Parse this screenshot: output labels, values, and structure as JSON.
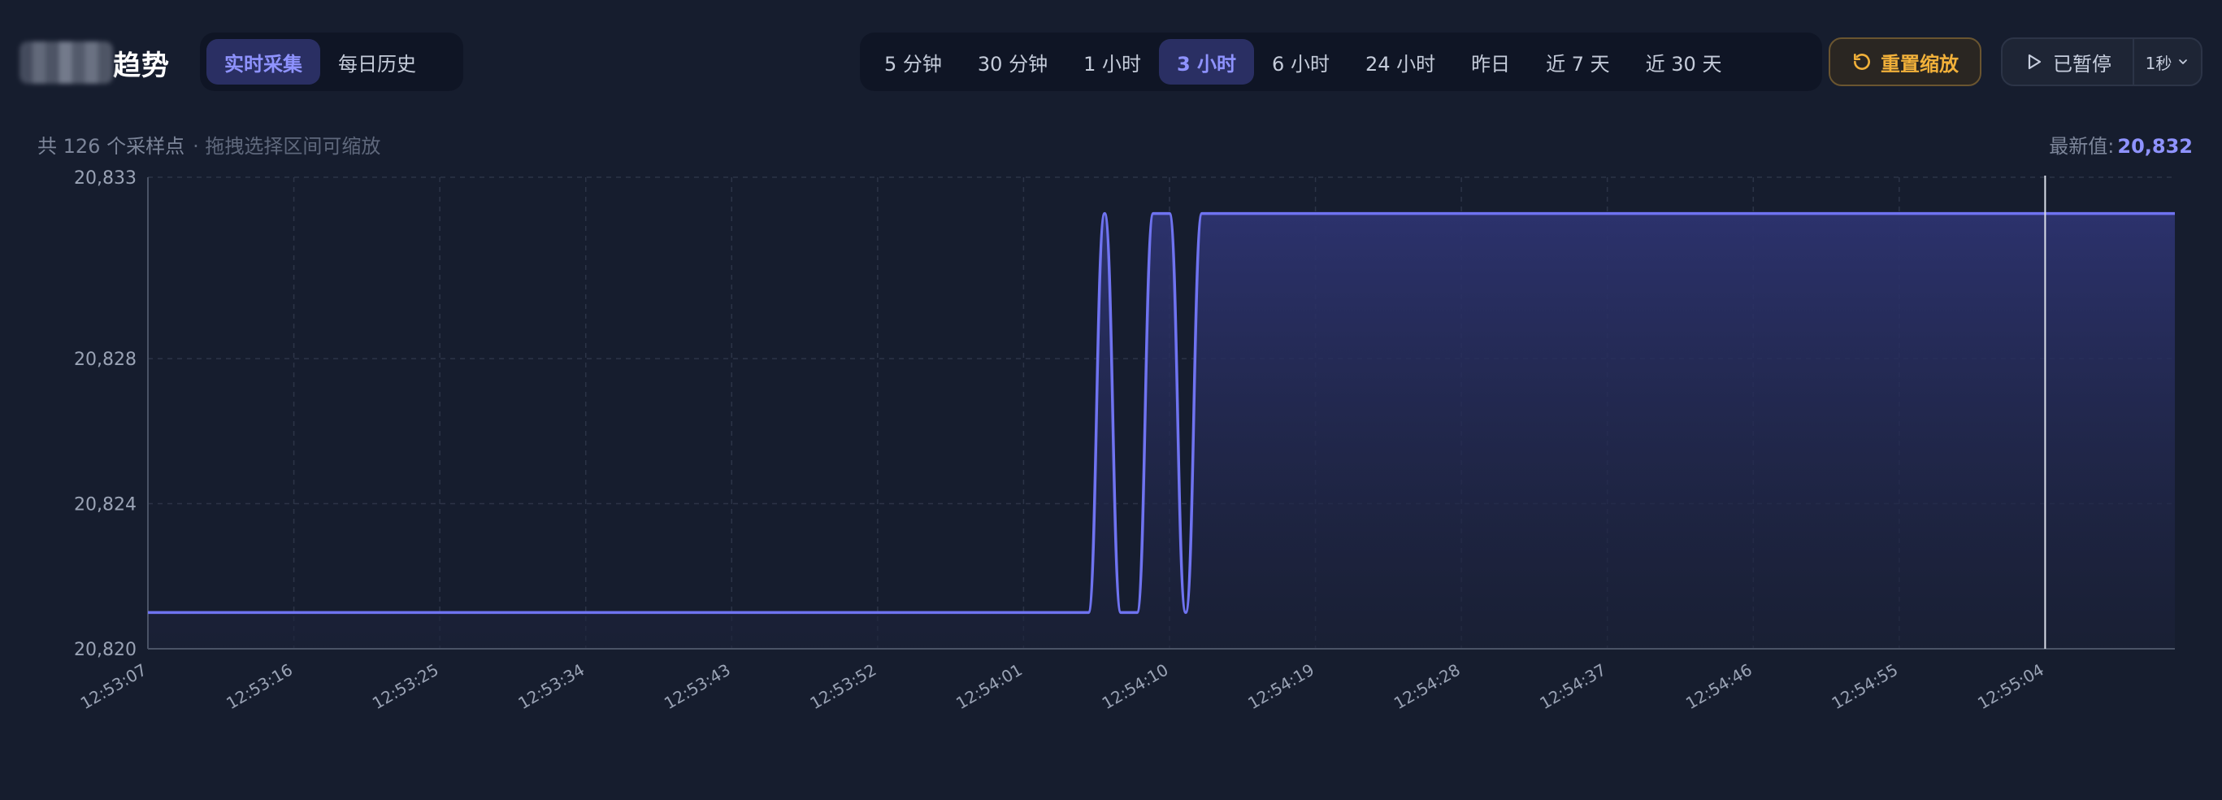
{
  "header": {
    "title_suffix": "趋势",
    "modes": [
      {
        "label": "实时采集",
        "active": true
      },
      {
        "label": "每日历史",
        "active": false
      }
    ],
    "ranges": [
      {
        "label": "5 分钟",
        "active": false
      },
      {
        "label": "30 分钟",
        "active": false
      },
      {
        "label": "1 小时",
        "active": false
      },
      {
        "label": "3 小时",
        "active": true
      },
      {
        "label": "6 小时",
        "active": false
      },
      {
        "label": "24 小时",
        "active": false
      },
      {
        "label": "昨日",
        "active": false
      },
      {
        "label": "近 7 天",
        "active": false
      },
      {
        "label": "近 30 天",
        "active": false
      }
    ],
    "reset_label": "重置缩放",
    "pause_label": "已暂停",
    "interval_label": "1秒"
  },
  "info": {
    "sample_count_text": "共 126 个采样点",
    "drag_hint": "· 拖拽选择区间可缩放",
    "latest_label": "最新值:",
    "latest_value": "20,832"
  },
  "colors": {
    "accent": "#6f73f0",
    "reset": "#f2b13a",
    "background": "#161d2e"
  },
  "chart_data": {
    "type": "area",
    "y_ticks": [
      "20,820",
      "20,824",
      "20,828",
      "20,833"
    ],
    "y_tick_values": [
      20820,
      20824,
      20828,
      20833
    ],
    "ylim": [
      20820,
      20833
    ],
    "x_ticks": [
      "12:53:07",
      "12:53:16",
      "12:53:25",
      "12:53:34",
      "12:53:43",
      "12:53:52",
      "12:54:01",
      "12:54:10",
      "12:54:19",
      "12:54:28",
      "12:54:37",
      "12:54:46",
      "12:54:55",
      "12:55:04"
    ],
    "x_start_time": "12:53:07",
    "x_end_time": "12:55:12",
    "cursor_time": "12:55:04",
    "grid": true,
    "series": [
      {
        "points": [
          [
            "12:53:07",
            20821
          ],
          [
            "12:54:05",
            20821
          ],
          [
            "12:54:06",
            20832
          ],
          [
            "12:54:07",
            20821
          ],
          [
            "12:54:08",
            20821
          ],
          [
            "12:54:09",
            20832
          ],
          [
            "12:54:10",
            20832
          ],
          [
            "12:54:11",
            20821
          ],
          [
            "12:54:12",
            20832
          ],
          [
            "12:55:12",
            20832
          ]
        ]
      }
    ]
  }
}
